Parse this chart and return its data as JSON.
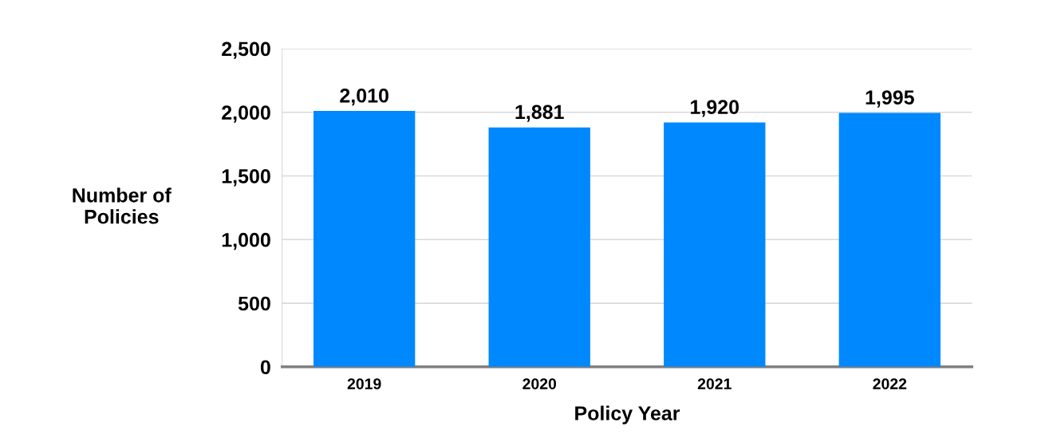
{
  "chart_data": {
    "type": "bar",
    "xlabel": "Policy Year",
    "ylabel": "Number of\nPolicies",
    "categories": [
      "2019",
      "2020",
      "2021",
      "2022"
    ],
    "values": [
      2010,
      1881,
      1920,
      1995
    ],
    "value_labels": [
      "2,010",
      "1,881",
      "1,920",
      "1,995"
    ],
    "color": "#0088ff",
    "ylim": [
      0,
      2500
    ],
    "yticks": [
      {
        "value": 0,
        "label": "0"
      },
      {
        "value": 500,
        "label": "500"
      },
      {
        "value": 1000,
        "label": "1,000"
      },
      {
        "value": 1500,
        "label": "1,500"
      },
      {
        "value": 2000,
        "label": "2,000"
      },
      {
        "value": 2500,
        "label": "2,500"
      }
    ],
    "grid": "y",
    "legend": false
  }
}
